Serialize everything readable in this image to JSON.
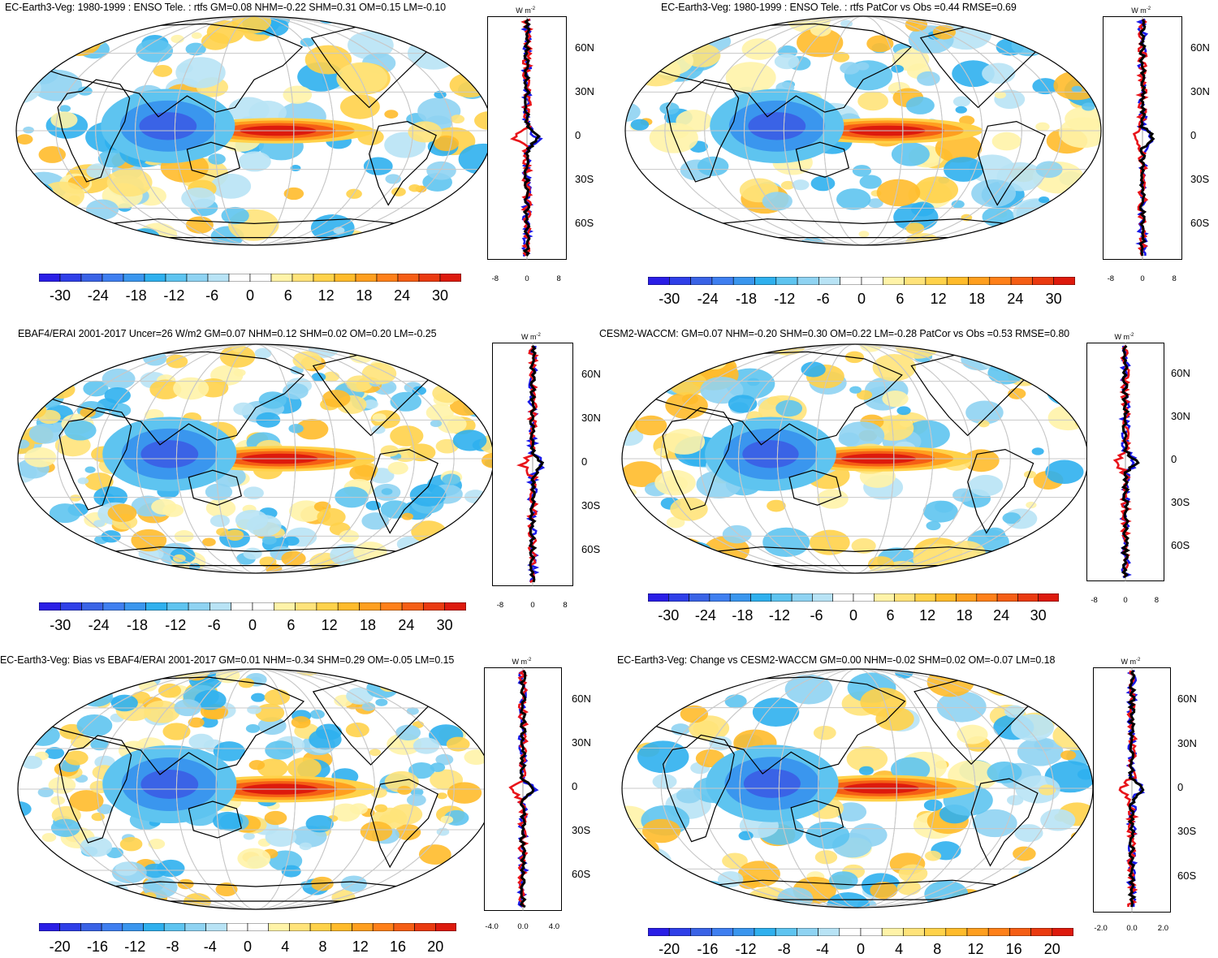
{
  "figure": {
    "unit_label": "W m",
    "unit_sup": "-2",
    "lat_labels": [
      "60N",
      "30N",
      "0",
      "30S",
      "60S"
    ]
  },
  "panels": [
    {
      "title": "EC-Earth3-Veg: 1980-1999 : ENSO Tele. : rtfs GM=0.08 NHM=-0.22 SHM=0.31 OM=0.15 LM=-0.10",
      "colorbar": [
        "-30",
        "-24",
        "-18",
        "-12",
        "-6",
        "0",
        "6",
        "12",
        "18",
        "24",
        "30"
      ],
      "profile_xticks": [
        "-8",
        "0",
        "8"
      ]
    },
    {
      "title": "EC-Earth3-Veg: 1980-1999 : ENSO Tele. : rtfs PatCor vs Obs =0.44 RMSE=0.69",
      "colorbar": [
        "-30",
        "-24",
        "-18",
        "-12",
        "-6",
        "0",
        "6",
        "12",
        "18",
        "24",
        "30"
      ],
      "profile_xticks": [
        "-8",
        "0",
        "8"
      ]
    },
    {
      "title": "EBAF4/ERAI 2001-2017 Uncer=26 W/m2 GM=0.07 NHM=0.12 SHM=0.02 OM=0.20 LM=-0.25",
      "colorbar": [
        "-30",
        "-24",
        "-18",
        "-12",
        "-6",
        "0",
        "6",
        "12",
        "18",
        "24",
        "30"
      ],
      "profile_xticks": [
        "-8",
        "0",
        "8"
      ]
    },
    {
      "title": "CESM2-WACCM: GM=0.07 NHM=-0.20 SHM=0.30 OM=0.22 LM=-0.28 PatCor vs Obs =0.53 RMSE=0.80",
      "colorbar": [
        "-30",
        "-24",
        "-18",
        "-12",
        "-6",
        "0",
        "6",
        "12",
        "18",
        "24",
        "30"
      ],
      "profile_xticks": [
        "-8",
        "0",
        "8"
      ]
    },
    {
      "title": "EC-Earth3-Veg: Bias vs EBAF4/ERAI 2001-2017 GM=0.01 NHM=-0.34 SHM=0.29 OM=-0.05 LM=0.15",
      "colorbar": [
        "-20",
        "-16",
        "-12",
        "-8",
        "-4",
        "0",
        "4",
        "8",
        "12",
        "16",
        "20"
      ],
      "profile_xticks": [
        "-4.0",
        "0.0",
        "4.0"
      ]
    },
    {
      "title": "EC-Earth3-Veg: Change vs CESM2-WACCM GM=0.00 NHM=-0.02 SHM=0.02 OM=-0.07 LM=0.18",
      "colorbar": [
        "-20",
        "-16",
        "-12",
        "-8",
        "-4",
        "0",
        "4",
        "8",
        "12",
        "16",
        "20"
      ],
      "profile_xticks": [
        "-2.0",
        "0.0",
        "2.0"
      ]
    }
  ],
  "colors": {
    "palette": [
      "#2a1ee6",
      "#2f3fe8",
      "#3a63e6",
      "#3f7ff0",
      "#3a96ee",
      "#2fb0ee",
      "#5ec4f0",
      "#8fd3f2",
      "#b8e3f5",
      "#ffffff",
      "#ffffff",
      "#fff3a8",
      "#ffe37a",
      "#ffd24a",
      "#ffbb2b",
      "#ff9f1f",
      "#ff8019",
      "#f55e15",
      "#ea3a10",
      "#dd1a0d"
    ],
    "model_line": "#e8141a",
    "obs_line": "#1a1ae8",
    "other_line": "#000000"
  }
}
